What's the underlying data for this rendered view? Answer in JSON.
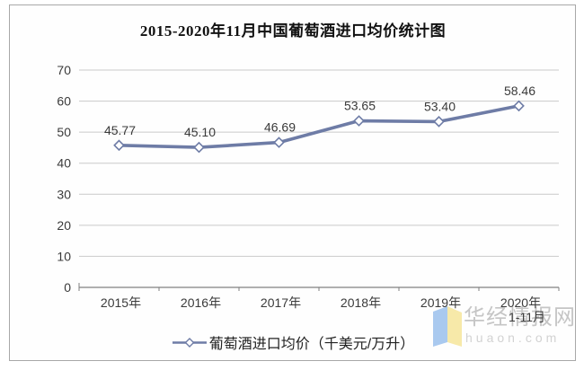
{
  "chart_data": {
    "type": "line",
    "title": "2015-2020年11月中国葡萄酒进口均价统计图",
    "categories": [
      "2015年",
      "2016年",
      "2017年",
      "2018年",
      "2019年",
      "2020年\n1-11月"
    ],
    "series": [
      {
        "name": "葡萄酒进口均价（千美元/万升）",
        "values": [
          45.77,
          45.1,
          46.69,
          53.65,
          53.4,
          58.46
        ]
      }
    ],
    "data_labels": [
      "45.77",
      "45.10",
      "46.69",
      "53.65",
      "53.40",
      "58.46"
    ],
    "xlabel": "",
    "ylabel": "",
    "ylim": [
      0,
      70
    ],
    "ytick_step": 10,
    "yticks": [
      "0",
      "10",
      "20",
      "30",
      "40",
      "50",
      "60",
      "70"
    ],
    "grid": true,
    "legend_position": "bottom",
    "marker": "open-diamond"
  },
  "colors": {
    "line": "#6e7ca6",
    "marker_fill": "#ffffff",
    "grid": "#c9c9c9",
    "axis": "#808080",
    "label_text": "#3a3a3a",
    "title_text": "#111111",
    "frame_border": "#a8a8a8",
    "watermark_brand": "#c5c5c5",
    "watermark_domain": "#d2d2d2",
    "logo_blue": "#a9c9ef",
    "logo_yellow": "#f7e9a9"
  },
  "watermark": {
    "brand": "华经情报网",
    "domain": "huaon.com"
  }
}
